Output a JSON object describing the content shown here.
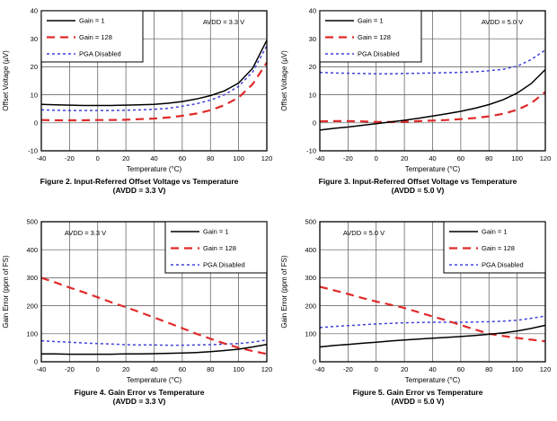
{
  "page": {
    "background": "#ffffff"
  },
  "colors": {
    "gain1": "#000000",
    "gain128": "#e02a2a",
    "pga_disabled": "#4040dd"
  },
  "chart_data": [
    {
      "type": "line",
      "figure_caption": "Figure 2. Input-Referred Offset Voltage vs Temperature",
      "figure_condition": "(AVDD = 3.3 V)",
      "annotation": "AVDD = 3.3 V",
      "annotation_corner": "top-right",
      "legend_corner": "top-left",
      "xlabel": "Temperature (°C)",
      "ylabel": "Offset Voltage (µV)",
      "xlim": [
        -40,
        120
      ],
      "ylim": [
        -10,
        40
      ],
      "xticks": [
        -40,
        -20,
        0,
        20,
        40,
        60,
        80,
        100,
        120
      ],
      "yticks": [
        -10,
        0,
        10,
        20,
        30,
        40
      ],
      "grid": true,
      "x": [
        -40,
        -30,
        -20,
        -10,
        0,
        10,
        20,
        30,
        40,
        50,
        60,
        70,
        80,
        90,
        100,
        110,
        120
      ],
      "series": [
        {
          "name": "Gain = 1",
          "color": "#000000",
          "dash": "solid",
          "values": [
            6.6,
            6.4,
            6.3,
            6.2,
            6.2,
            6.2,
            6.3,
            6.4,
            6.6,
            7.0,
            7.6,
            8.5,
            9.7,
            11.4,
            14.2,
            19.5,
            29.5
          ]
        },
        {
          "name": "Gain = 128",
          "color": "#e02a2a",
          "dash": "long",
          "values": [
            1.0,
            0.9,
            0.9,
            0.9,
            1.0,
            1.0,
            1.1,
            1.3,
            1.5,
            1.9,
            2.5,
            3.3,
            4.5,
            6.3,
            9.0,
            13.8,
            21.5
          ]
        },
        {
          "name": "PGA Disabled",
          "color": "#4040dd",
          "dash": "dot",
          "values": [
            4.6,
            4.5,
            4.4,
            4.4,
            4.4,
            4.4,
            4.5,
            4.6,
            4.8,
            5.2,
            5.9,
            6.8,
            8.1,
            10.0,
            13.0,
            18.2,
            27.5
          ]
        }
      ]
    },
    {
      "type": "line",
      "figure_caption": "Figure 3. Input-Referred Offset Voltage vs Temperature",
      "figure_condition": "(AVDD = 5.0 V)",
      "annotation": "AVDD = 5.0 V",
      "annotation_corner": "top-right",
      "legend_corner": "top-left",
      "xlabel": "Temperature (°C)",
      "ylabel": "Offset Voltage (µV)",
      "xlim": [
        -40,
        120
      ],
      "ylim": [
        -10,
        40
      ],
      "xticks": [
        -40,
        -20,
        0,
        20,
        40,
        60,
        80,
        100,
        120
      ],
      "yticks": [
        -10,
        0,
        10,
        20,
        30,
        40
      ],
      "grid": true,
      "x": [
        -40,
        -30,
        -20,
        -10,
        0,
        10,
        20,
        30,
        40,
        50,
        60,
        70,
        80,
        90,
        100,
        110,
        120
      ],
      "series": [
        {
          "name": "Gain = 1",
          "color": "#000000",
          "dash": "solid",
          "values": [
            -2.6,
            -2.0,
            -1.5,
            -0.9,
            -0.3,
            0.3,
            0.9,
            1.6,
            2.4,
            3.2,
            4.1,
            5.2,
            6.5,
            8.2,
            10.6,
            14.0,
            19.0
          ]
        },
        {
          "name": "Gain = 128",
          "color": "#e02a2a",
          "dash": "long",
          "values": [
            0.5,
            0.6,
            0.6,
            0.5,
            0.3,
            0.3,
            0.4,
            0.6,
            0.8,
            1.0,
            1.3,
            1.7,
            2.3,
            3.2,
            4.6,
            7.0,
            11.0
          ]
        },
        {
          "name": "PGA Disabled",
          "color": "#4040dd",
          "dash": "dot",
          "values": [
            18.0,
            17.8,
            17.7,
            17.6,
            17.5,
            17.5,
            17.6,
            17.7,
            17.8,
            17.9,
            18.0,
            18.2,
            18.6,
            19.1,
            20.2,
            22.6,
            26.0
          ]
        }
      ]
    },
    {
      "type": "line",
      "figure_caption": "Figure 4. Gain Error vs Temperature",
      "figure_condition": "(AVDD = 3.3 V)",
      "annotation": "AVDD = 3.3 V",
      "annotation_corner": "top-left",
      "legend_corner": "top-right",
      "xlabel": "Temperature (°C)",
      "ylabel": "Gain Error (ppm of FS)",
      "xlim": [
        -40,
        120
      ],
      "ylim": [
        0,
        500
      ],
      "xticks": [
        -40,
        -20,
        0,
        20,
        40,
        60,
        80,
        100,
        120
      ],
      "yticks": [
        0,
        100,
        200,
        300,
        400,
        500
      ],
      "grid": true,
      "x": [
        -40,
        -30,
        -20,
        -10,
        0,
        10,
        20,
        30,
        40,
        50,
        60,
        70,
        80,
        90,
        100,
        110,
        120
      ],
      "series": [
        {
          "name": "Gain = 1",
          "color": "#000000",
          "dash": "solid",
          "values": [
            28,
            28,
            27,
            27,
            27,
            27,
            28,
            28,
            29,
            30,
            31,
            33,
            36,
            40,
            45,
            53,
            62
          ]
        },
        {
          "name": "Gain = 128",
          "color": "#e02a2a",
          "dash": "long",
          "values": [
            300,
            283,
            265,
            248,
            230,
            212,
            195,
            177,
            158,
            139,
            120,
            100,
            82,
            65,
            50,
            38,
            28
          ]
        },
        {
          "name": "PGA Disabled",
          "color": "#4040dd",
          "dash": "dot",
          "values": [
            75,
            72,
            70,
            67,
            65,
            63,
            61,
            60,
            60,
            59,
            59,
            60,
            61,
            63,
            65,
            70,
            78
          ]
        }
      ]
    },
    {
      "type": "line",
      "figure_caption": "Figure 5. Gain Error vs Temperature",
      "figure_condition": "(AVDD = 5.0 V)",
      "annotation": "AVDD = 5.0 V",
      "annotation_corner": "top-left",
      "legend_corner": "top-right",
      "xlabel": "Temperature (°C)",
      "ylabel": "Gain Error (ppm of FS)",
      "xlim": [
        -40,
        120
      ],
      "ylim": [
        0,
        500
      ],
      "xticks": [
        -40,
        -20,
        0,
        20,
        40,
        60,
        80,
        100,
        120
      ],
      "yticks": [
        0,
        100,
        200,
        300,
        400,
        500
      ],
      "grid": true,
      "x": [
        -40,
        -30,
        -20,
        -10,
        0,
        10,
        20,
        30,
        40,
        50,
        60,
        70,
        80,
        90,
        100,
        110,
        120
      ],
      "series": [
        {
          "name": "Gain = 1",
          "color": "#000000",
          "dash": "solid",
          "values": [
            53,
            58,
            62,
            66,
            70,
            74,
            78,
            81,
            84,
            87,
            90,
            94,
            98,
            103,
            110,
            119,
            130
          ]
        },
        {
          "name": "Gain = 128",
          "color": "#e02a2a",
          "dash": "long",
          "values": [
            268,
            255,
            242,
            228,
            215,
            204,
            192,
            177,
            162,
            147,
            131,
            115,
            100,
            92,
            85,
            79,
            73
          ]
        },
        {
          "name": "PGA Disabled",
          "color": "#4040dd",
          "dash": "dot",
          "values": [
            122,
            126,
            129,
            132,
            135,
            137,
            139,
            140,
            141,
            141,
            141,
            142,
            143,
            145,
            148,
            155,
            163
          ]
        }
      ]
    }
  ]
}
